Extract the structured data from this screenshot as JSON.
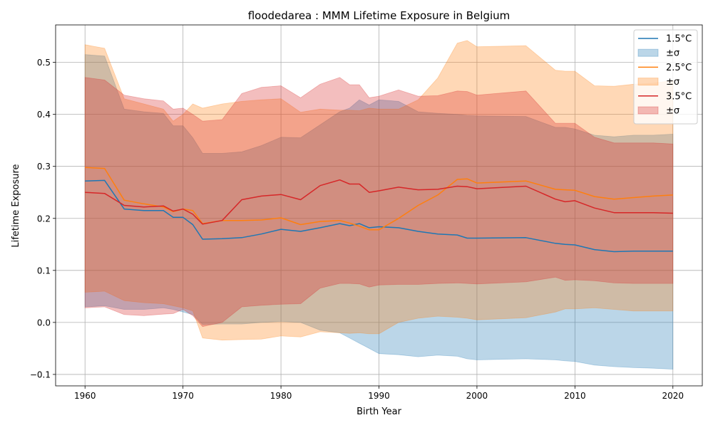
{
  "chart_data": {
    "type": "area",
    "title": "floodedarea : MMM Lifetime Exposure in Belgium",
    "xlabel": "Birth Year",
    "ylabel": "Lifetime Exposure",
    "xlim": [
      1957,
      2023
    ],
    "ylim": [
      -0.122,
      0.572
    ],
    "xticks": [
      1960,
      1970,
      1980,
      1990,
      2000,
      2010,
      2020
    ],
    "xtick_labels": [
      "1960",
      "1970",
      "1980",
      "1990",
      "2000",
      "2010",
      "2020"
    ],
    "yticks": [
      -0.1,
      0.0,
      0.1,
      0.2,
      0.3,
      0.4,
      0.5
    ],
    "ytick_labels": [
      "−0.1",
      "0.0",
      "0.1",
      "0.2",
      "0.3",
      "0.4",
      "0.5"
    ],
    "grid": true,
    "legend_position": "top-right",
    "x": [
      1960,
      1962,
      1964,
      1966,
      1968,
      1969,
      1970,
      1971,
      1972,
      1974,
      1976,
      1978,
      1980,
      1982,
      1984,
      1986,
      1987,
      1988,
      1989,
      1990,
      1992,
      1994,
      1996,
      1998,
      1999,
      2000,
      2005,
      2008,
      2009,
      2010,
      2012,
      2014,
      2016,
      2018,
      2020
    ],
    "series": [
      {
        "name": "1.5°C",
        "band_name": "±σ",
        "color": "#1f77b4",
        "values": [
          0.272,
          0.273,
          0.218,
          0.215,
          0.215,
          0.202,
          0.202,
          0.188,
          0.16,
          0.161,
          0.163,
          0.17,
          0.179,
          0.175,
          0.182,
          0.19,
          0.186,
          0.19,
          0.182,
          0.184,
          0.182,
          0.175,
          0.17,
          0.168,
          0.162,
          0.162,
          0.163,
          0.152,
          0.15,
          0.149,
          0.14,
          0.136,
          0.137,
          0.137,
          0.137
        ],
        "lower": [
          0.03,
          0.032,
          0.025,
          0.025,
          0.028,
          0.025,
          0.02,
          0.015,
          -0.004,
          -0.003,
          -0.003,
          0.0,
          0.002,
          0.0,
          -0.015,
          -0.02,
          -0.03,
          -0.04,
          -0.05,
          -0.06,
          -0.062,
          -0.066,
          -0.063,
          -0.065,
          -0.07,
          -0.072,
          -0.07,
          -0.072,
          -0.074,
          -0.075,
          -0.082,
          -0.085,
          -0.087,
          -0.088,
          -0.09
        ],
        "upper": [
          0.515,
          0.512,
          0.41,
          0.405,
          0.402,
          0.378,
          0.378,
          0.355,
          0.325,
          0.325,
          0.328,
          0.34,
          0.356,
          0.355,
          0.38,
          0.405,
          0.412,
          0.428,
          0.418,
          0.428,
          0.425,
          0.405,
          0.402,
          0.4,
          0.398,
          0.397,
          0.396,
          0.375,
          0.375,
          0.372,
          0.36,
          0.357,
          0.36,
          0.36,
          0.362
        ]
      },
      {
        "name": "2.5°C",
        "band_name": "±σ",
        "color": "#ff7f0e",
        "values": [
          0.298,
          0.296,
          0.235,
          0.228,
          0.222,
          0.213,
          0.218,
          0.215,
          0.19,
          0.196,
          0.196,
          0.197,
          0.201,
          0.188,
          0.194,
          0.196,
          0.191,
          0.185,
          0.178,
          0.178,
          0.2,
          0.225,
          0.245,
          0.275,
          0.276,
          0.268,
          0.272,
          0.256,
          0.255,
          0.254,
          0.242,
          0.237,
          0.24,
          0.243,
          0.245
        ],
        "lower": [
          0.058,
          0.06,
          0.042,
          0.038,
          0.036,
          0.032,
          0.028,
          0.022,
          -0.03,
          -0.034,
          -0.033,
          -0.032,
          -0.026,
          -0.028,
          -0.018,
          -0.02,
          -0.021,
          -0.02,
          -0.022,
          -0.022,
          0.0,
          0.008,
          0.012,
          0.01,
          0.008,
          0.005,
          0.009,
          0.02,
          0.026,
          0.026,
          0.028,
          0.025,
          0.022,
          0.022,
          0.022
        ],
        "upper": [
          0.534,
          0.527,
          0.43,
          0.42,
          0.41,
          0.387,
          0.4,
          0.42,
          0.412,
          0.42,
          0.425,
          0.428,
          0.43,
          0.404,
          0.41,
          0.408,
          0.408,
          0.407,
          0.412,
          0.41,
          0.41,
          0.428,
          0.47,
          0.537,
          0.542,
          0.53,
          0.532,
          0.485,
          0.483,
          0.483,
          0.455,
          0.454,
          0.458,
          0.46,
          0.465
        ]
      },
      {
        "name": "3.5°C",
        "band_name": "±σ",
        "color": "#d62728",
        "values": [
          0.25,
          0.248,
          0.225,
          0.222,
          0.224,
          0.214,
          0.218,
          0.208,
          0.189,
          0.196,
          0.236,
          0.243,
          0.246,
          0.236,
          0.263,
          0.274,
          0.266,
          0.266,
          0.25,
          0.253,
          0.26,
          0.255,
          0.256,
          0.262,
          0.261,
          0.257,
          0.262,
          0.237,
          0.232,
          0.234,
          0.22,
          0.211,
          0.211,
          0.211,
          0.21
        ],
        "lower": [
          0.028,
          0.03,
          0.015,
          0.013,
          0.016,
          0.017,
          0.025,
          0.013,
          -0.008,
          0.0,
          0.03,
          0.033,
          0.035,
          0.036,
          0.066,
          0.075,
          0.075,
          0.074,
          0.068,
          0.072,
          0.073,
          0.073,
          0.075,
          0.076,
          0.075,
          0.074,
          0.078,
          0.087,
          0.081,
          0.082,
          0.08,
          0.076,
          0.075,
          0.075,
          0.075
        ],
        "upper": [
          0.471,
          0.466,
          0.437,
          0.43,
          0.426,
          0.41,
          0.412,
          0.4,
          0.387,
          0.39,
          0.44,
          0.452,
          0.455,
          0.432,
          0.458,
          0.471,
          0.457,
          0.457,
          0.432,
          0.435,
          0.447,
          0.435,
          0.436,
          0.445,
          0.444,
          0.437,
          0.445,
          0.383,
          0.383,
          0.383,
          0.356,
          0.345,
          0.345,
          0.345,
          0.343
        ]
      }
    ]
  }
}
